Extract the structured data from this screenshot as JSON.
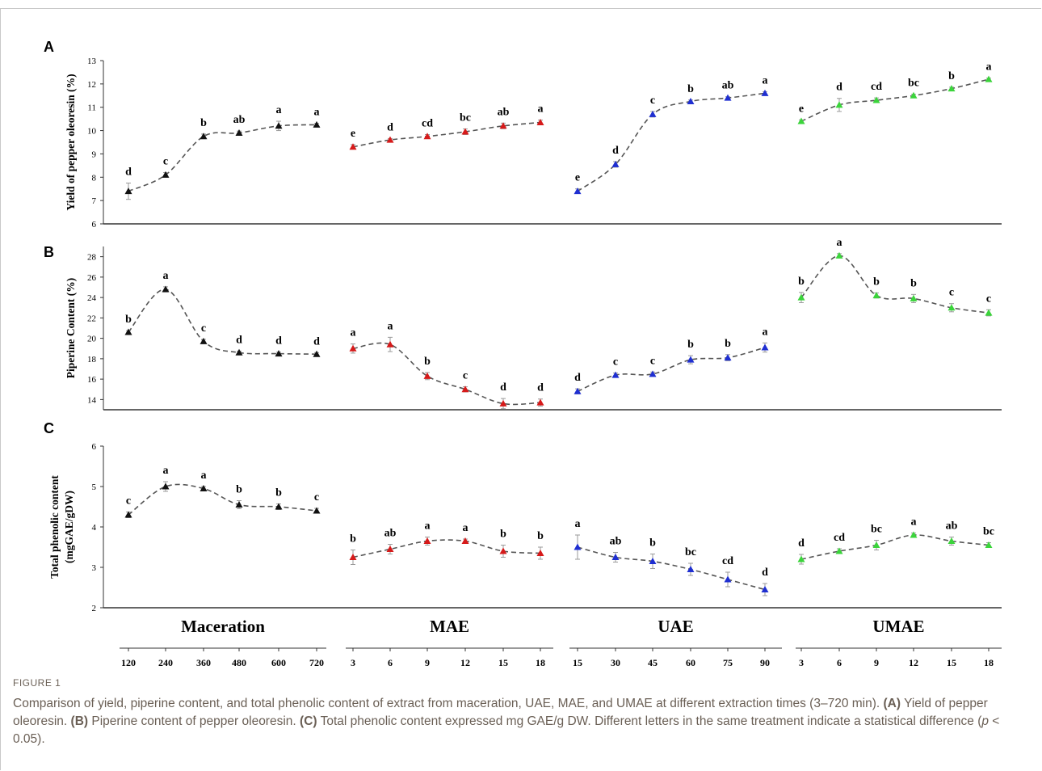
{
  "figure": {
    "label": "FIGURE 1",
    "caption_intro": "Comparison of yield, piperine content, and total phenolic content of extract from maceration, UAE, MAE, and UMAE at different extraction times (3–720 min).",
    "caption_a_tag": "(A)",
    "caption_a_text": "Yield of pepper oleoresin.",
    "caption_b_tag": "(B)",
    "caption_b_text": "Piperine content of pepper oleoresin.",
    "caption_c_tag": "(C)",
    "caption_c_text": "Total phenolic content expressed mg GAE/g DW.",
    "caption_end_pre": "Different letters in the same treatment indicate a statistical difference (",
    "caption_end_p": "p",
    "caption_end_post": " < 0.05)."
  },
  "colors": {
    "Maceration": "#111111",
    "MAE": "#d61a1a",
    "UAE": "#1f2fd1",
    "UMAE": "#3bd43b",
    "line": "#555555",
    "error_bar": "#9a9a9a"
  },
  "chart_data": {
    "type": "line",
    "groups": [
      {
        "name": "Maceration",
        "x": [
          120,
          240,
          360,
          480,
          600,
          720
        ]
      },
      {
        "name": "MAE",
        "x": [
          3,
          6,
          9,
          12,
          15,
          18
        ]
      },
      {
        "name": "UAE",
        "x": [
          15,
          30,
          45,
          60,
          75,
          90
        ]
      },
      {
        "name": "UMAE",
        "x": [
          3,
          6,
          9,
          12,
          15,
          18
        ]
      }
    ],
    "panels": [
      {
        "label": "A",
        "ylabel_lines": [
          "Yield of pepper oleoresin (%)"
        ],
        "ylim": [
          6,
          13
        ],
        "yticks": [
          6,
          7,
          8,
          9,
          10,
          11,
          12,
          13
        ],
        "series": [
          {
            "group": "Maceration",
            "values": [
              7.4,
              8.1,
              9.75,
              9.9,
              10.2,
              10.25
            ],
            "errors": [
              0.35,
              0.1,
              0.1,
              0.08,
              0.2,
              0.06
            ],
            "letters": [
              "d",
              "c",
              "b",
              "ab",
              "a",
              "a"
            ]
          },
          {
            "group": "MAE",
            "values": [
              9.3,
              9.6,
              9.75,
              9.95,
              10.2,
              10.35
            ],
            "errors": [
              0.1,
              0.06,
              0.08,
              0.12,
              0.12,
              0.1
            ],
            "letters": [
              "e",
              "d",
              "cd",
              "bc",
              "ab",
              "a"
            ]
          },
          {
            "group": "UAE",
            "values": [
              7.4,
              8.55,
              10.7,
              11.25,
              11.4,
              11.6
            ],
            "errors": [
              0.1,
              0.12,
              0.12,
              0.06,
              0.05,
              0.07
            ],
            "letters": [
              "e",
              "d",
              "c",
              "b",
              "ab",
              "a"
            ]
          },
          {
            "group": "UMAE",
            "values": [
              10.4,
              11.1,
              11.3,
              11.5,
              11.8,
              12.2
            ],
            "errors": [
              0.06,
              0.28,
              0.1,
              0.06,
              0.06,
              0.05
            ],
            "letters": [
              "e",
              "d",
              "cd",
              "bc",
              "b",
              "a"
            ]
          }
        ]
      },
      {
        "label": "B",
        "ylabel_lines": [
          "Piperine Content (%)"
        ],
        "ylim": [
          13,
          29
        ],
        "yticks": [
          14,
          16,
          18,
          20,
          22,
          24,
          26,
          28
        ],
        "series": [
          {
            "group": "Maceration",
            "values": [
              20.6,
              24.8,
              19.7,
              18.6,
              18.5,
              18.45
            ],
            "errors": [
              0.15,
              0.25,
              0.2,
              0.15,
              0.15,
              0.15
            ],
            "letters": [
              "b",
              "a",
              "c",
              "d",
              "d",
              "d"
            ]
          },
          {
            "group": "MAE",
            "values": [
              19.0,
              19.4,
              16.3,
              15.0,
              13.6,
              13.7
            ],
            "errors": [
              0.45,
              0.7,
              0.35,
              0.25,
              0.5,
              0.35
            ],
            "letters": [
              "a",
              "a",
              "b",
              "c",
              "d",
              "d"
            ]
          },
          {
            "group": "UAE",
            "values": [
              14.8,
              16.4,
              16.5,
              17.9,
              18.1,
              19.1
            ],
            "errors": [
              0.25,
              0.2,
              0.2,
              0.4,
              0.3,
              0.45
            ],
            "letters": [
              "d",
              "c",
              "c",
              "b",
              "b",
              "a"
            ]
          },
          {
            "group": "UMAE",
            "values": [
              24.0,
              28.1,
              24.2,
              23.9,
              23.0,
              22.5
            ],
            "errors": [
              0.5,
              0.2,
              0.25,
              0.4,
              0.4,
              0.3
            ],
            "letters": [
              "b",
              "a",
              "b",
              "b",
              "c",
              "c"
            ]
          }
        ]
      },
      {
        "label": "C",
        "ylabel_lines": [
          "Total phenolic content",
          "(mgGAE/gDW)"
        ],
        "ylim": [
          2,
          6
        ],
        "yticks": [
          2,
          3,
          4,
          5,
          6
        ],
        "series": [
          {
            "group": "Maceration",
            "values": [
              4.3,
              5.0,
              4.95,
              4.55,
              4.5,
              4.4
            ],
            "errors": [
              0.07,
              0.12,
              0.05,
              0.1,
              0.07,
              0.06
            ],
            "letters": [
              "c",
              "a",
              "a",
              "b",
              "b",
              "c"
            ]
          },
          {
            "group": "MAE",
            "values": [
              3.25,
              3.45,
              3.65,
              3.65,
              3.4,
              3.35
            ],
            "errors": [
              0.18,
              0.12,
              0.1,
              0.05,
              0.15,
              0.15
            ],
            "letters": [
              "b",
              "ab",
              "a",
              "a",
              "b",
              "b"
            ]
          },
          {
            "group": "UAE",
            "values": [
              3.5,
              3.25,
              3.15,
              2.95,
              2.7,
              2.45
            ],
            "errors": [
              0.3,
              0.12,
              0.18,
              0.15,
              0.18,
              0.15
            ],
            "letters": [
              "a",
              "ab",
              "b",
              "bc",
              "cd",
              "d"
            ]
          },
          {
            "group": "UMAE",
            "values": [
              3.2,
              3.4,
              3.55,
              3.8,
              3.65,
              3.55
            ],
            "errors": [
              0.12,
              0.06,
              0.12,
              0.05,
              0.1,
              0.06
            ],
            "letters": [
              "d",
              "cd",
              "bc",
              "a",
              "ab",
              "bc"
            ]
          }
        ]
      }
    ]
  }
}
